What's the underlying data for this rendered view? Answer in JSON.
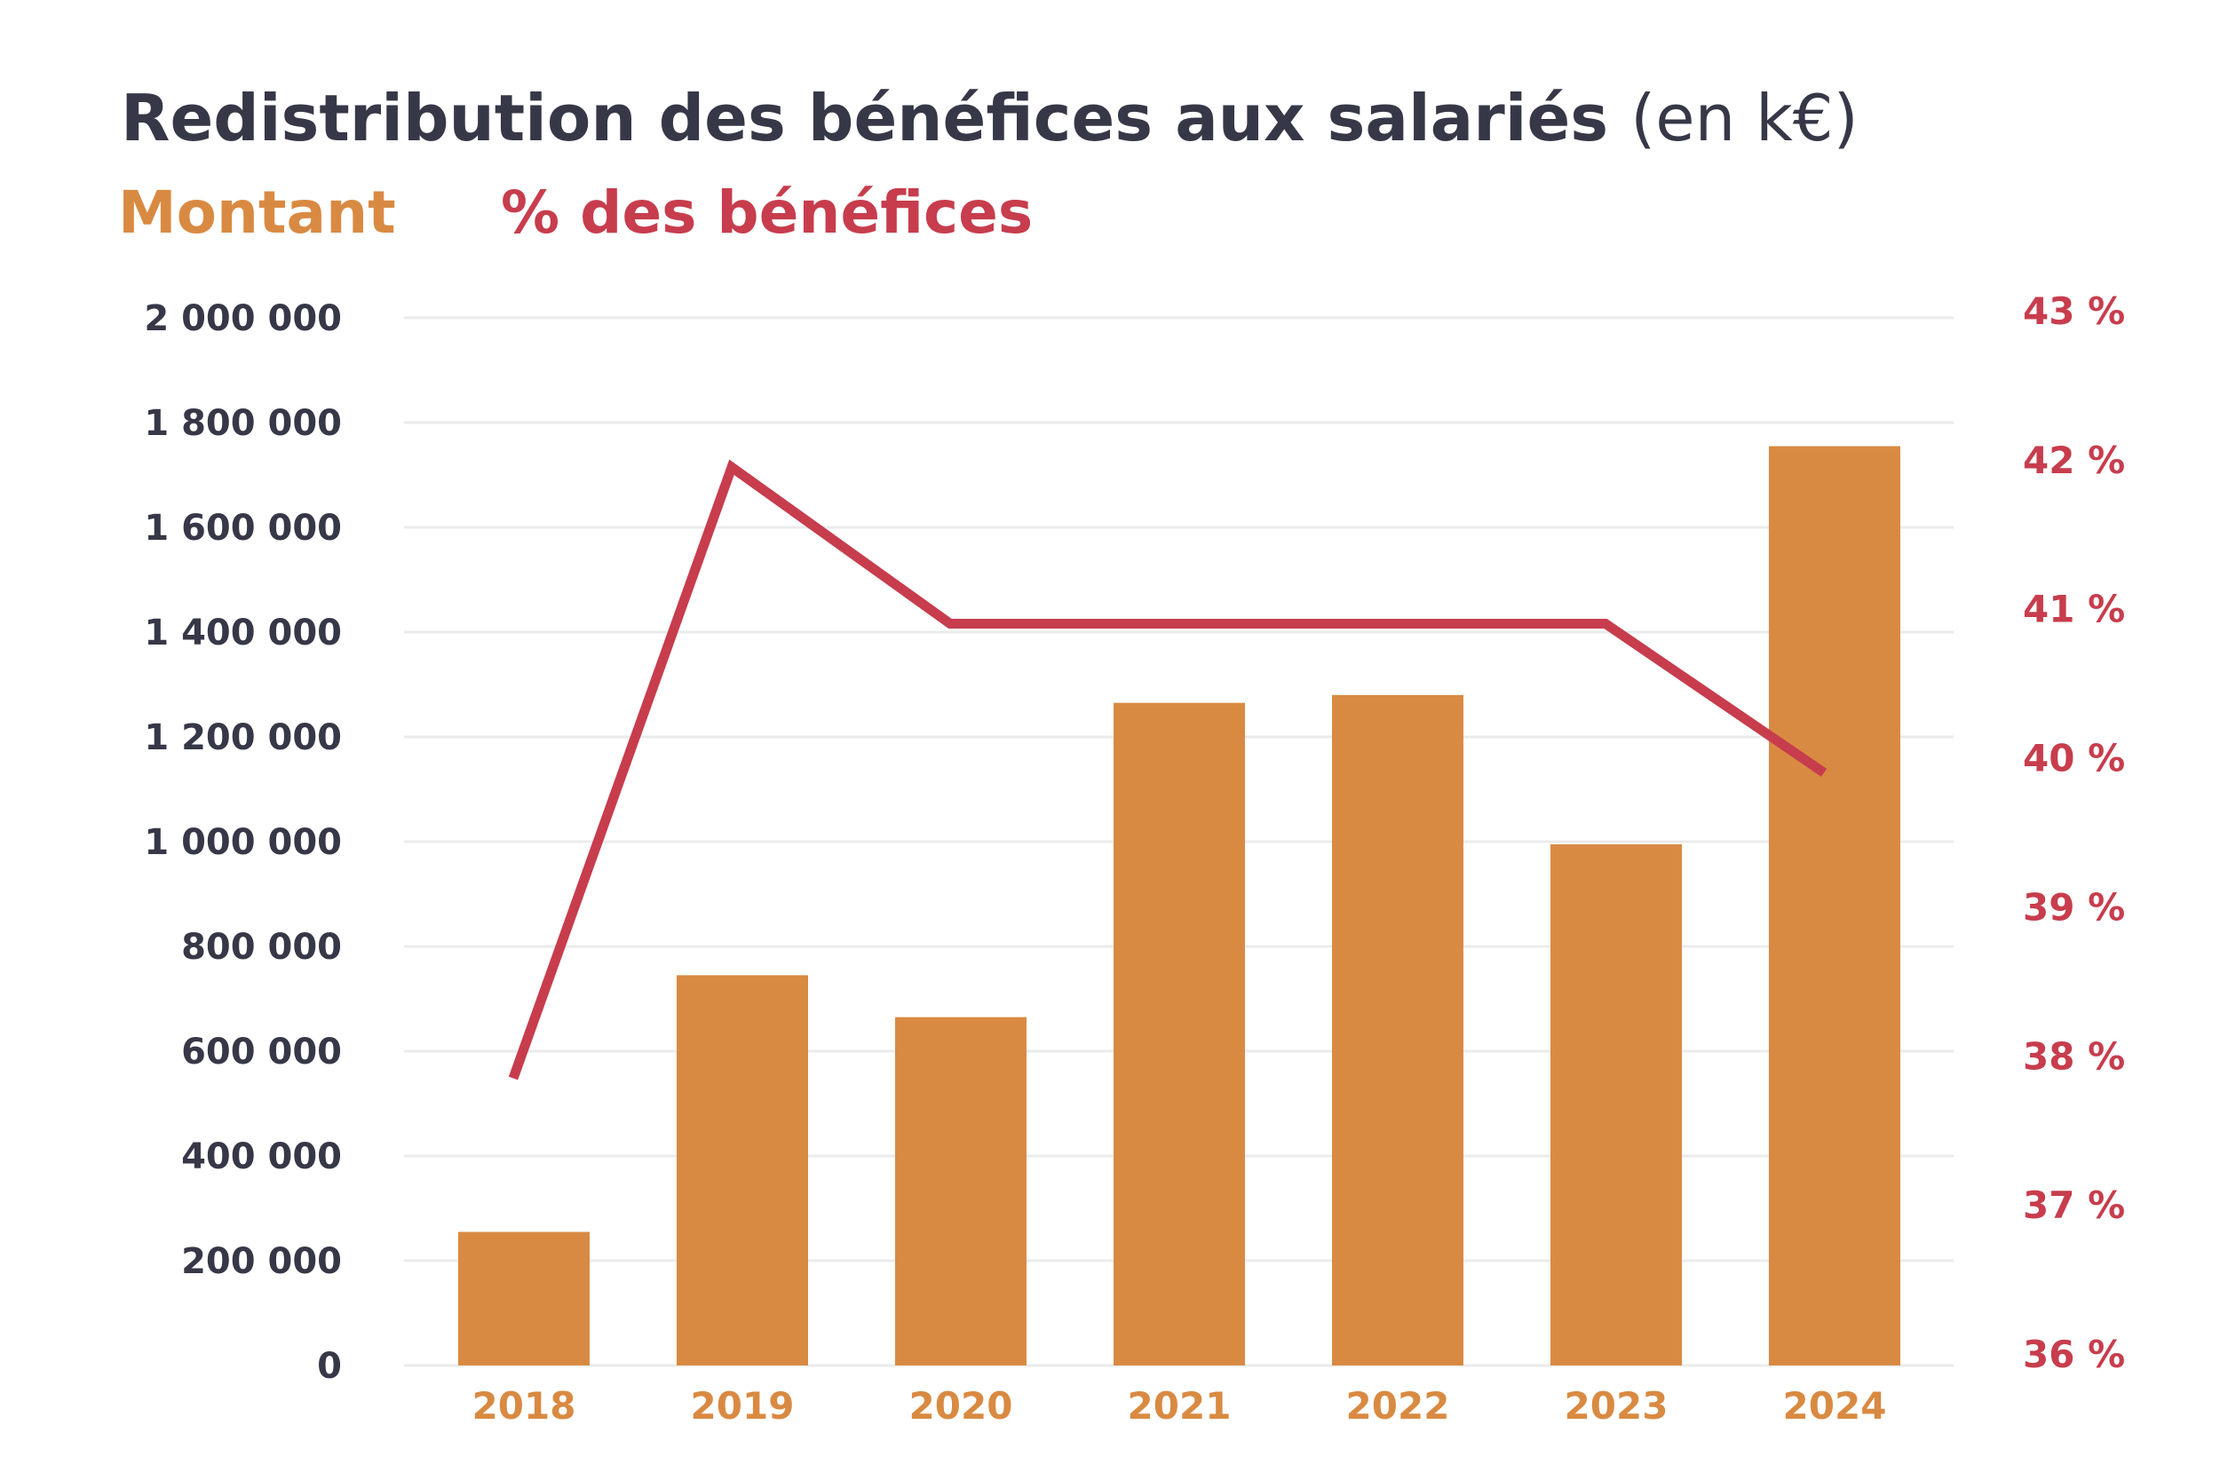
{
  "chart_data": {
    "type": "bar",
    "title": "Redistribution des bénéfices aux salariés",
    "title_unit": "(en k€)",
    "categories": [
      "2018",
      "2019",
      "2020",
      "2021",
      "2022",
      "2023",
      "2024"
    ],
    "series": [
      {
        "name": "Montant",
        "type": "bar",
        "axis": "left",
        "color": "#D98A42",
        "values": [
          255000,
          745000,
          665000,
          1265000,
          1280000,
          995000,
          1755000
        ]
      },
      {
        "name": "% des bénéfices",
        "type": "line",
        "axis": "right",
        "color": "#C73D4D",
        "values": [
          37.85,
          41.95,
          40.9,
          40.9,
          40.9,
          40.9,
          39.9
        ]
      }
    ],
    "yaxis_left": {
      "ylim": [
        0,
        2000000
      ],
      "ticks": [
        0,
        200000,
        400000,
        600000,
        800000,
        1000000,
        1200000,
        1400000,
        1600000,
        1800000,
        2000000
      ],
      "tick_labels": [
        "0",
        "200 000",
        "400 000",
        "600 000",
        "800 000",
        "1 000 000",
        "1 200 000",
        "1 400 000",
        "1 600 000",
        "1 800 000",
        "2 000 000"
      ]
    },
    "yaxis_right": {
      "ylim": [
        36,
        43
      ],
      "ticks": [
        36,
        37,
        38,
        39,
        40,
        41,
        42,
        43
      ],
      "tick_labels": [
        "36 %",
        "37 %",
        "38 %",
        "39 %",
        "40 %",
        "41 %",
        "42 %",
        "43 %"
      ]
    },
    "grid": true,
    "grid_color": "#EBEBEB",
    "legend_placement": "top-left",
    "text_color": "#363847"
  }
}
